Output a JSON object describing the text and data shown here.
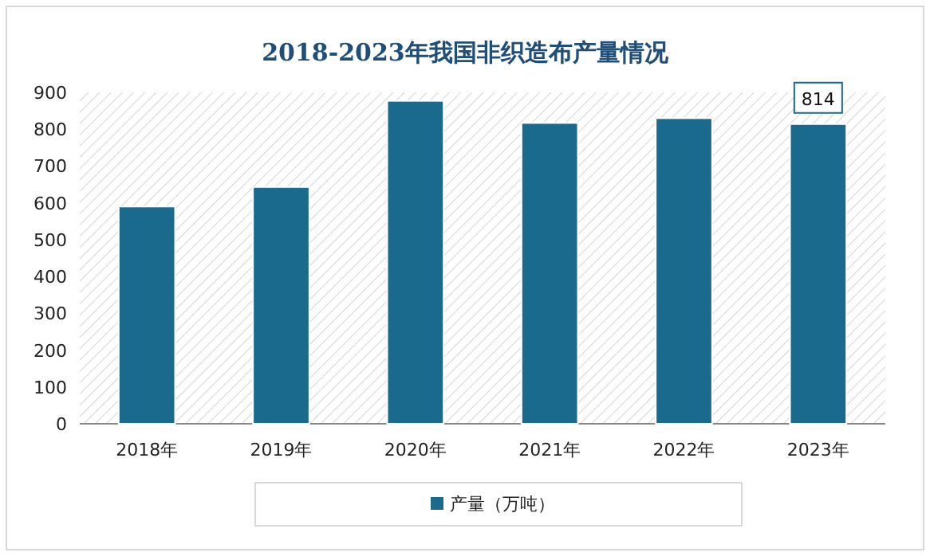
{
  "chart_data": {
    "type": "bar",
    "title": "2018-2023年我国非织造布产量情况",
    "categories": [
      "2018年",
      "2019年",
      "2020年",
      "2021年",
      "2022年",
      "2023年"
    ],
    "series": [
      {
        "name": "产量（万吨）",
        "color": "#1a6a8e",
        "values": [
          590,
          643,
          877,
          817,
          830,
          814
        ],
        "value_labels": [
          null,
          null,
          null,
          null,
          null,
          "814"
        ]
      }
    ],
    "ylim": [
      0,
      900
    ],
    "yticks": [
      0,
      100,
      200,
      300,
      400,
      500,
      600,
      700,
      800,
      900
    ],
    "legend": "bottom"
  }
}
